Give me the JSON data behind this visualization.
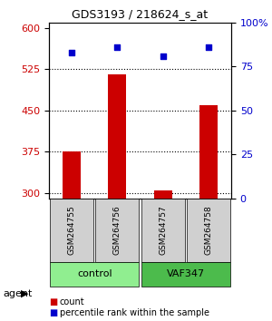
{
  "title": "GDS3193 / 218624_s_at",
  "samples": [
    "GSM264755",
    "GSM264756",
    "GSM264757",
    "GSM264758"
  ],
  "counts": [
    375,
    515,
    305,
    460
  ],
  "percentiles": [
    83,
    86,
    81,
    86
  ],
  "groups": [
    "control",
    "control",
    "VAF347",
    "VAF347"
  ],
  "group_colors": {
    "control": "#90EE90",
    "VAF347": "#4CBB4C"
  },
  "ylim_left": [
    290,
    610
  ],
  "yticks_left": [
    300,
    375,
    450,
    525,
    600
  ],
  "ylim_right": [
    0,
    100
  ],
  "yticks_right": [
    0,
    25,
    50,
    75,
    100
  ],
  "bar_color": "#CC0000",
  "dot_color": "#0000CC",
  "bar_width": 0.4,
  "xlabel_color_left": "#CC0000",
  "xlabel_color_right": "#0000CC",
  "legend_count_color": "#CC0000",
  "legend_pct_color": "#0000CC",
  "bg_color": "#FFFFFF",
  "panel_bg": "#F0F0F0",
  "grid_color": "#000000",
  "grid_style": "dotted"
}
